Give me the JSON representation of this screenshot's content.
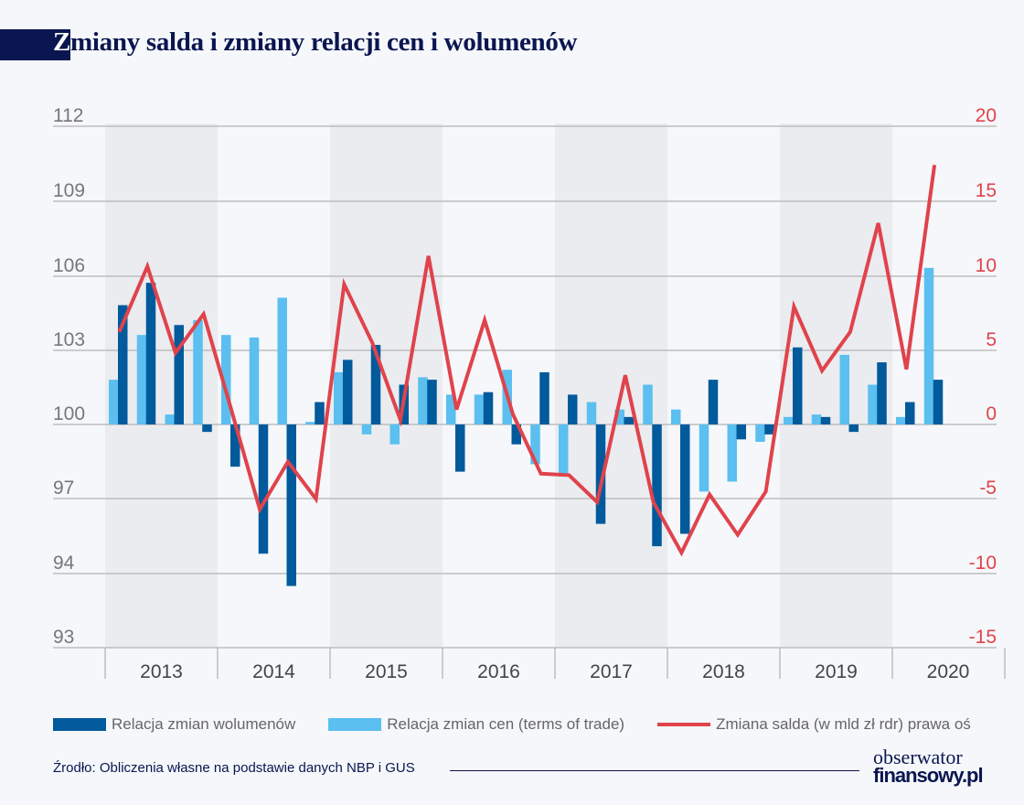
{
  "title": {
    "first_letter": "Z",
    "rest": "miany salda i zmiany relacji cen i wolumenów"
  },
  "chart_data": {
    "type": "bar+line",
    "title": "Zmiany salda i zmiany relacji cen i wolumenów",
    "categories": [
      "2013Q1",
      "2013Q2",
      "2013Q3",
      "2013Q4",
      "2014Q1",
      "2014Q2",
      "2014Q3",
      "2014Q4",
      "2015Q1",
      "2015Q2",
      "2015Q3",
      "2015Q4",
      "2016Q1",
      "2016Q2",
      "2016Q3",
      "2016Q4",
      "2017Q1",
      "2017Q2",
      "2017Q3",
      "2017Q4",
      "2018Q1",
      "2018Q2",
      "2018Q3",
      "2018Q4",
      "2019Q1",
      "2019Q2",
      "2019Q3",
      "2019Q4",
      "2020Q1",
      "2020Q2"
    ],
    "year_labels": [
      "2013",
      "2014",
      "2015",
      "2016",
      "2017",
      "2018",
      "2019",
      "2020"
    ],
    "left_axis": {
      "ticks": [
        "112",
        "109",
        "106",
        "103",
        "100",
        "97",
        "94",
        "93"
      ],
      "range": [
        91,
        112
      ],
      "baseline": 100
    },
    "right_axis": {
      "ticks": [
        "20",
        "15",
        "10",
        "5",
        "0",
        "-5",
        "-10",
        "-15"
      ],
      "range": [
        -15,
        20
      ]
    },
    "series": [
      {
        "name": "Relacja zmian wolumenów",
        "type": "bar",
        "axis": "left",
        "color": "#005a9c",
        "values": [
          104.8,
          105.7,
          104.0,
          99.7,
          98.3,
          94.8,
          93.5,
          100.9,
          102.6,
          103.2,
          101.6,
          101.8,
          98.1,
          101.3,
          99.2,
          102.1,
          101.2,
          96.0,
          100.3,
          95.1,
          95.6,
          101.8,
          99.4,
          99.6,
          103.1,
          100.3,
          99.7,
          102.5,
          100.9,
          101.8
        ]
      },
      {
        "name": "Relacja zmian cen (terms of trade)",
        "type": "bar",
        "axis": "left",
        "color": "#5bbff0",
        "values": [
          101.8,
          103.6,
          100.4,
          104.2,
          103.6,
          103.5,
          105.1,
          100.1,
          102.1,
          99.6,
          99.2,
          101.9,
          101.2,
          101.2,
          102.2,
          98.4,
          97.9,
          100.9,
          100.6,
          101.6,
          100.6,
          97.3,
          97.7,
          99.3,
          100.3,
          100.4,
          102.8,
          101.6,
          100.3,
          106.3
        ]
      },
      {
        "name": "Zmiana salda (w mld zł rdr) prawa oś",
        "type": "line",
        "axis": "right",
        "color": "#e0434b",
        "values": [
          6.2,
          10.6,
          4.8,
          7.4,
          0.9,
          -5.7,
          -2.5,
          -5.0,
          9.4,
          5.5,
          0.3,
          11.3,
          1.0,
          7.0,
          0.7,
          -3.3,
          -3.4,
          -5.2,
          3.3,
          -5.2,
          -8.6,
          -4.7,
          -7.4,
          -4.5,
          7.9,
          3.6,
          6.2,
          13.5,
          3.7,
          17.4
        ]
      }
    ],
    "grid": true,
    "legend_placement": "bottom"
  },
  "legend": {
    "volume": "Relacja zmian wolumenów",
    "prices": "Relacja zmian cen (terms of trade)",
    "balance": "Zmiana salda (w mld zł rdr) prawa oś"
  },
  "source": "Źrodło: Obliczenia własne na podstawie danych NBP i GUS",
  "logo": {
    "line1": "obserwator",
    "line2": "finansowy.pl"
  }
}
